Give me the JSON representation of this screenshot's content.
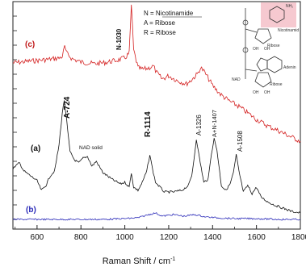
{
  "chart_data": {
    "type": "line",
    "title": "",
    "xlabel": "Raman Shift / cm",
    "xlabel_superscript": "-1",
    "ylabel": "",
    "xlim": [
      490,
      1800
    ],
    "x_ticks": [
      "600",
      "800",
      "1000",
      "1200",
      "1400",
      "1600",
      "1800"
    ],
    "grid": false,
    "series": [
      {
        "name": "(c)",
        "color": "#d42020",
        "points": [
          [
            490,
            78
          ],
          [
            560,
            76
          ],
          [
            640,
            74
          ],
          [
            700,
            72
          ],
          [
            715,
            70
          ],
          [
            726,
            58
          ],
          [
            735,
            66
          ],
          [
            760,
            73
          ],
          [
            800,
            77
          ],
          [
            860,
            79
          ],
          [
            900,
            78
          ],
          [
            960,
            75
          ],
          [
            1000,
            72
          ],
          [
            1020,
            66
          ],
          [
            1030,
            6
          ],
          [
            1040,
            62
          ],
          [
            1060,
            84
          ],
          [
            1080,
            86
          ],
          [
            1100,
            85
          ],
          [
            1130,
            82
          ],
          [
            1145,
            90
          ],
          [
            1170,
            98
          ],
          [
            1200,
            94
          ],
          [
            1240,
            100
          ],
          [
            1280,
            104
          ],
          [
            1300,
            100
          ],
          [
            1330,
            92
          ],
          [
            1345,
            84
          ],
          [
            1360,
            88
          ],
          [
            1400,
            106
          ],
          [
            1440,
            118
          ],
          [
            1480,
            126
          ],
          [
            1520,
            132
          ],
          [
            1560,
            140
          ],
          [
            1600,
            148
          ],
          [
            1650,
            156
          ],
          [
            1700,
            162
          ],
          [
            1760,
            170
          ],
          [
            1800,
            175
          ]
        ]
      },
      {
        "name": "(a)",
        "color": "#111111",
        "points": [
          [
            490,
            210
          ],
          [
            500,
            206
          ],
          [
            520,
            202
          ],
          [
            540,
            212
          ],
          [
            560,
            216
          ],
          [
            600,
            224
          ],
          [
            620,
            236
          ],
          [
            640,
            230
          ],
          [
            660,
            218
          ],
          [
            680,
            212
          ],
          [
            700,
            180
          ],
          [
            715,
            140
          ],
          [
            724,
            124
          ],
          [
            735,
            150
          ],
          [
            750,
            188
          ],
          [
            770,
            198
          ],
          [
            790,
            202
          ],
          [
            810,
            196
          ],
          [
            830,
            194
          ],
          [
            850,
            206
          ],
          [
            870,
            200
          ],
          [
            900,
            214
          ],
          [
            940,
            222
          ],
          [
            980,
            228
          ],
          [
            1000,
            226
          ],
          [
            1020,
            232
          ],
          [
            1030,
            214
          ],
          [
            1040,
            232
          ],
          [
            1060,
            236
          ],
          [
            1080,
            226
          ],
          [
            1100,
            212
          ],
          [
            1114,
            192
          ],
          [
            1125,
            208
          ],
          [
            1140,
            226
          ],
          [
            1180,
            238
          ],
          [
            1220,
            238
          ],
          [
            1260,
            236
          ],
          [
            1290,
            230
          ],
          [
            1305,
            218
          ],
          [
            1315,
            198
          ],
          [
            1326,
            172
          ],
          [
            1340,
            196
          ],
          [
            1360,
            226
          ],
          [
            1380,
            222
          ],
          [
            1395,
            190
          ],
          [
            1407,
            172
          ],
          [
            1420,
            186
          ],
          [
            1440,
            230
          ],
          [
            1460,
            236
          ],
          [
            1480,
            228
          ],
          [
            1495,
            214
          ],
          [
            1508,
            192
          ],
          [
            1520,
            212
          ],
          [
            1540,
            238
          ],
          [
            1560,
            230
          ],
          [
            1580,
            240
          ],
          [
            1600,
            232
          ],
          [
            1620,
            244
          ],
          [
            1650,
            250
          ],
          [
            1680,
            254
          ],
          [
            1720,
            258
          ],
          [
            1760,
            262
          ],
          [
            1800,
            264
          ]
        ]
      },
      {
        "name": "(b)",
        "color": "#2a2ab8",
        "points": [
          [
            490,
            272
          ],
          [
            600,
            272
          ],
          [
            700,
            272
          ],
          [
            800,
            272
          ],
          [
            900,
            272
          ],
          [
            1000,
            271
          ],
          [
            1060,
            270
          ],
          [
            1110,
            266
          ],
          [
            1140,
            264
          ],
          [
            1170,
            268
          ],
          [
            1220,
            266
          ],
          [
            1270,
            268
          ],
          [
            1320,
            266
          ],
          [
            1370,
            269
          ],
          [
            1420,
            270
          ],
          [
            1500,
            271
          ],
          [
            1600,
            271
          ],
          [
            1700,
            272
          ],
          [
            1800,
            272
          ]
        ]
      }
    ],
    "labels": {
      "c": "(c)",
      "a": "(a)",
      "b": "(b)",
      "n1030": "N-1030",
      "a724": "A-724",
      "nad_solid": "NAD solid",
      "r1114": "R-1114",
      "a1326": "A-1326",
      "an1407": "A+N-1407",
      "a1508": "A-1508"
    },
    "legend": {
      "n": "N = Nicotinamide",
      "a": "A = Ribose",
      "r": "R = Ribose"
    },
    "structure": {
      "nicotinamide": "Nicotinamid",
      "ribose1": "Ribose",
      "ribose2": "Ribose",
      "adenine": "Adenin",
      "nad": "NAD",
      "nh2": "NH₂",
      "oh1": "OH",
      "oh2": "OH",
      "oh3": "OH",
      "oh4": "OH"
    }
  }
}
